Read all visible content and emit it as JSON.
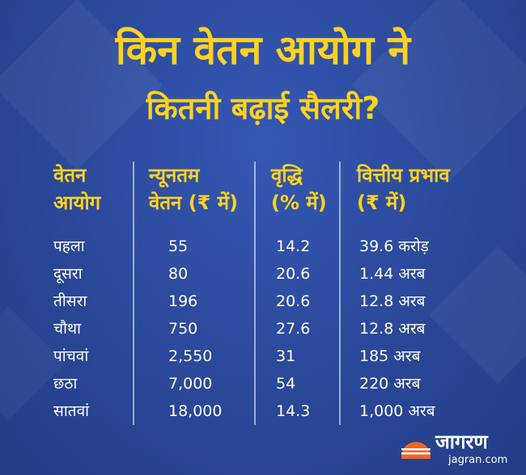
{
  "title_line1": "किन वेतन आयोग ने",
  "title_line2": "कितनी बढ़ाई सैलरी?",
  "table": {
    "headers": [
      {
        "line1": "वेतन",
        "line2": "आयोग"
      },
      {
        "line1": "न्यूनतम",
        "line2": "वेतन (₹ में)"
      },
      {
        "line1": "वृद्धि",
        "line2": "(% में)"
      },
      {
        "line1": "वित्तीय प्रभाव",
        "line2": "(₹ में)"
      }
    ],
    "rows": [
      [
        "पहला",
        "55",
        "14.2",
        "39.6 करोड़"
      ],
      [
        "दूसरा",
        "80",
        "20.6",
        "1.44 अरब"
      ],
      [
        "तीसरा",
        "196",
        "20.6",
        "12.8 अरब"
      ],
      [
        "चौथा",
        "750",
        "27.6",
        "12.8 अरब"
      ],
      [
        "पांचवां",
        "2,550",
        "31",
        "185 अरब"
      ],
      [
        "छठा",
        "7,000",
        "54",
        "220 अरब"
      ],
      [
        "सातवां",
        "18,000",
        "14.3",
        "1,000 अरब"
      ]
    ]
  },
  "logo": {
    "wordmark": "जागरण",
    "url": "jagran.com"
  },
  "colors": {
    "background": "#2b4a9c",
    "accent": "#ffd21f",
    "text": "#ffffff",
    "logo_sun": "#f26522"
  }
}
